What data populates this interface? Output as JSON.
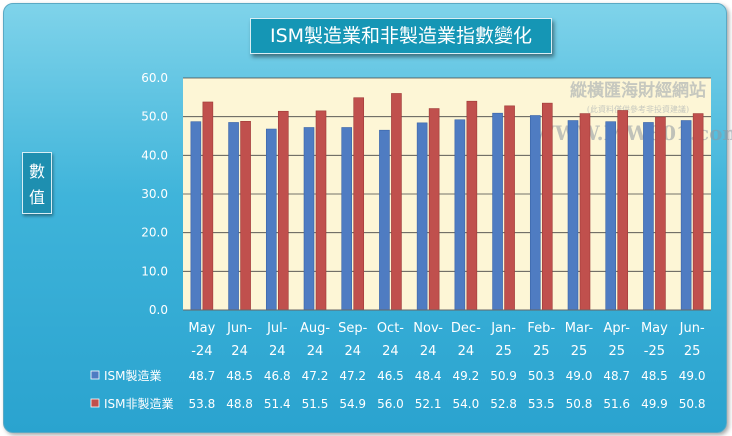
{
  "chart_data": {
    "type": "bar",
    "title": "ISM製造業和非製造業指數變化",
    "ylabel": "數值",
    "ylim": [
      0,
      60
    ],
    "yticks": [
      "0.0",
      "10.0",
      "20.0",
      "30.0",
      "40.0",
      "50.0",
      "60.0"
    ],
    "grid": true,
    "categories": [
      [
        "May",
        "-24"
      ],
      [
        "Jun-",
        "24"
      ],
      [
        "Jul-",
        "24"
      ],
      [
        "Aug-",
        "24"
      ],
      [
        "Sep-",
        "24"
      ],
      [
        "Oct-",
        "24"
      ],
      [
        "Nov-",
        "24"
      ],
      [
        "Dec-",
        "24"
      ],
      [
        "Jan-",
        "25"
      ],
      [
        "Feb-",
        "25"
      ],
      [
        "Mar-",
        "25"
      ],
      [
        "Apr-",
        "25"
      ],
      [
        "May",
        "-25"
      ],
      [
        "Jun-",
        "25"
      ]
    ],
    "series": [
      {
        "name": "ISM製造業",
        "color": "#4f7cc2",
        "values": [
          48.7,
          48.5,
          46.8,
          47.2,
          47.2,
          46.5,
          48.4,
          49.2,
          50.9,
          50.3,
          49.0,
          48.7,
          48.5,
          49.0
        ]
      },
      {
        "name": "ISM非製造業",
        "color": "#c0504d",
        "values": [
          53.8,
          48.8,
          51.4,
          51.5,
          54.9,
          56.0,
          52.1,
          54.0,
          52.8,
          53.5,
          50.8,
          51.6,
          49.9,
          50.8
        ]
      }
    ],
    "data_table": true
  },
  "watermark": {
    "title": "縱橫匯海財經網站",
    "subtitle": "(此資料僅供參考非投資建議)",
    "site": "WWW.MW801.com"
  }
}
